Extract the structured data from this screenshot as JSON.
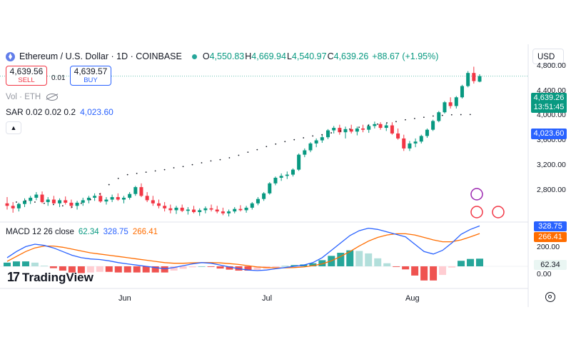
{
  "header": {
    "symbol": "Ethereum / U.S. Dollar · 1D · COINBASE",
    "ohlc": {
      "o_key": "O",
      "o": "4,550.83",
      "h_key": "H",
      "h": "4,669.94",
      "l_key": "L",
      "l": "4,540.97",
      "c_key": "C",
      "c": "4,639.26",
      "change": "+88.67 (+1.95%)"
    },
    "currency": "USD"
  },
  "trade": {
    "sell_price": "4,639.56",
    "sell_label": "SELL",
    "spread": "0.01",
    "buy_price": "4,639.57",
    "buy_label": "BUY"
  },
  "indicators": {
    "vol_label": "Vol · ETH",
    "sar_label": "SAR 0.02 0.02 0.2",
    "sar_value": "4,023.60",
    "macd_label": "MACD 12 26 close",
    "macd_hist": "62.34",
    "macd_line": "328.75",
    "macd_signal": "266.41"
  },
  "price_scale": {
    "ticks": [
      "4,800.00",
      "4,400.00",
      "4,000.00",
      "3,600.00",
      "3,200.00",
      "2,800.00"
    ],
    "last_price": "4,639.26",
    "countdown": "13:51:45",
    "sar_tag": "4,023.60"
  },
  "macd_scale": {
    "ticks": [
      "200.00",
      "0.00"
    ],
    "macd_tag": "328.75",
    "signal_tag": "266.41",
    "hist_tag": "62.34"
  },
  "time_axis": [
    "Jun",
    "Jul",
    "Aug"
  ],
  "logo": "TradingView",
  "colors": {
    "up": "#089981",
    "down": "#f23645",
    "sar": "#131722",
    "macd": "#2962ff",
    "signal": "#ff6d00",
    "hist_up": "#26a69a",
    "hist_down": "#ef5350"
  },
  "chart_data": {
    "type": "candlestick",
    "price_range": [
      2300,
      5150
    ],
    "candles": [
      [
        2600,
        2700,
        2500,
        2560
      ],
      [
        2560,
        2620,
        2450,
        2520
      ],
      [
        2520,
        2610,
        2470,
        2590
      ],
      [
        2590,
        2680,
        2540,
        2640
      ],
      [
        2640,
        2720,
        2590,
        2690
      ],
      [
        2690,
        2780,
        2650,
        2740
      ],
      [
        2740,
        2790,
        2600,
        2620
      ],
      [
        2620,
        2700,
        2560,
        2660
      ],
      [
        2660,
        2720,
        2590,
        2600
      ],
      [
        2600,
        2680,
        2540,
        2650
      ],
      [
        2650,
        2710,
        2580,
        2610
      ],
      [
        2610,
        2660,
        2520,
        2560
      ],
      [
        2560,
        2640,
        2500,
        2610
      ],
      [
        2610,
        2690,
        2560,
        2650
      ],
      [
        2650,
        2720,
        2600,
        2690
      ],
      [
        2690,
        2760,
        2640,
        2720
      ],
      [
        2720,
        2770,
        2610,
        2630
      ],
      [
        2630,
        2700,
        2580,
        2660
      ],
      [
        2660,
        2740,
        2620,
        2700
      ],
      [
        2700,
        2760,
        2640,
        2660
      ],
      [
        2660,
        2720,
        2600,
        2690
      ],
      [
        2690,
        2780,
        2660,
        2750
      ],
      [
        2750,
        2880,
        2720,
        2860
      ],
      [
        2860,
        2920,
        2700,
        2720
      ],
      [
        2720,
        2780,
        2620,
        2650
      ],
      [
        2650,
        2720,
        2560,
        2600
      ],
      [
        2600,
        2660,
        2520,
        2560
      ],
      [
        2560,
        2620,
        2470,
        2520
      ],
      [
        2520,
        2580,
        2440,
        2490
      ],
      [
        2490,
        2560,
        2430,
        2530
      ],
      [
        2530,
        2580,
        2460,
        2480
      ],
      [
        2480,
        2540,
        2420,
        2500
      ],
      [
        2500,
        2560,
        2440,
        2460
      ],
      [
        2460,
        2520,
        2400,
        2490
      ],
      [
        2490,
        2550,
        2440,
        2520
      ],
      [
        2520,
        2580,
        2470,
        2500
      ],
      [
        2500,
        2560,
        2440,
        2470
      ],
      [
        2470,
        2530,
        2410,
        2440
      ],
      [
        2440,
        2500,
        2390,
        2470
      ],
      [
        2470,
        2540,
        2440,
        2510
      ],
      [
        2510,
        2570,
        2470,
        2490
      ],
      [
        2490,
        2560,
        2450,
        2530
      ],
      [
        2530,
        2620,
        2500,
        2600
      ],
      [
        2600,
        2700,
        2570,
        2670
      ],
      [
        2670,
        2780,
        2640,
        2760
      ],
      [
        2760,
        2940,
        2740,
        2920
      ],
      [
        2920,
        3030,
        2890,
        3010
      ],
      [
        3010,
        3080,
        2960,
        3040
      ],
      [
        3040,
        3110,
        2990,
        3060
      ],
      [
        3060,
        3160,
        3030,
        3140
      ],
      [
        3140,
        3400,
        3120,
        3380
      ],
      [
        3380,
        3480,
        3340,
        3450
      ],
      [
        3450,
        3580,
        3420,
        3560
      ],
      [
        3560,
        3640,
        3500,
        3610
      ],
      [
        3610,
        3700,
        3570,
        3660
      ],
      [
        3660,
        3790,
        3630,
        3770
      ],
      [
        3770,
        3840,
        3720,
        3810
      ],
      [
        3810,
        3860,
        3700,
        3740
      ],
      [
        3740,
        3830,
        3640,
        3790
      ],
      [
        3790,
        3860,
        3720,
        3750
      ],
      [
        3750,
        3830,
        3690,
        3800
      ],
      [
        3800,
        3860,
        3740,
        3780
      ],
      [
        3780,
        3870,
        3730,
        3840
      ],
      [
        3840,
        3910,
        3800,
        3870
      ],
      [
        3870,
        3900,
        3780,
        3810
      ],
      [
        3810,
        3880,
        3760,
        3850
      ],
      [
        3850,
        3900,
        3700,
        3720
      ],
      [
        3720,
        3800,
        3620,
        3640
      ],
      [
        3640,
        3700,
        3440,
        3480
      ],
      [
        3480,
        3600,
        3440,
        3560
      ],
      [
        3560,
        3640,
        3500,
        3590
      ],
      [
        3590,
        3700,
        3560,
        3680
      ],
      [
        3680,
        3800,
        3650,
        3780
      ],
      [
        3780,
        3940,
        3760,
        3920
      ],
      [
        3920,
        4080,
        3900,
        4060
      ],
      [
        4060,
        4240,
        4040,
        4220
      ],
      [
        4220,
        4300,
        4120,
        4160
      ],
      [
        4160,
        4320,
        4120,
        4300
      ],
      [
        4300,
        4500,
        4280,
        4480
      ],
      [
        4480,
        4720,
        4460,
        4690
      ],
      [
        4690,
        4790,
        4520,
        4560
      ],
      [
        4550.83,
        4669.94,
        4540.97,
        4639.26
      ]
    ],
    "sar": [
      [
        4,
        2620
      ],
      [
        8,
        2640
      ],
      [
        12,
        2620
      ],
      [
        16,
        2600
      ],
      [
        20,
        2580
      ],
      [
        24,
        2560
      ],
      [
        28,
        2540
      ],
      [
        32,
        2600
      ],
      [
        36,
        2660
      ],
      [
        40,
        2750
      ],
      [
        44,
        2900
      ],
      [
        48,
        3000
      ],
      [
        52,
        3060
      ],
      [
        56,
        3080
      ],
      [
        60,
        3100
      ],
      [
        64,
        3120
      ],
      [
        68,
        3140
      ],
      [
        72,
        3170
      ],
      [
        76,
        3190
      ],
      [
        80,
        3220
      ],
      [
        84,
        3250
      ],
      [
        88,
        3280
      ],
      [
        92,
        3300
      ],
      [
        96,
        3330
      ],
      [
        100,
        3370
      ],
      [
        104,
        3420
      ],
      [
        108,
        3460
      ],
      [
        112,
        3510
      ],
      [
        116,
        3550
      ],
      [
        120,
        3590
      ],
      [
        124,
        3620
      ],
      [
        128,
        3650
      ],
      [
        132,
        3680
      ],
      [
        136,
        3700
      ],
      [
        140,
        3730
      ],
      [
        144,
        3760
      ],
      [
        148,
        3790
      ],
      [
        152,
        3820
      ],
      [
        156,
        3850
      ],
      [
        160,
        3870
      ],
      [
        164,
        3890
      ],
      [
        168,
        3910
      ],
      [
        172,
        3940
      ],
      [
        176,
        3960
      ],
      [
        180,
        3980
      ],
      [
        184,
        4000
      ],
      [
        188,
        4010
      ],
      [
        192,
        4020
      ],
      [
        196,
        4022
      ],
      [
        200,
        4023.6
      ]
    ],
    "macd_range": [
      -180,
      360
    ],
    "macd_line": [
      70,
      120,
      160,
      180,
      170,
      150,
      120,
      90,
      70,
      60,
      55,
      45,
      30,
      20,
      10,
      0,
      -10,
      -20,
      -10,
      5,
      20,
      30,
      25,
      10,
      -5,
      -20,
      -30,
      -35,
      -30,
      -20,
      -10,
      0,
      10,
      30,
      70,
      130,
      190,
      250,
      290,
      310,
      300,
      280,
      260,
      240,
      180,
      120,
      100,
      130,
      190,
      260,
      300,
      328.75
    ],
    "signal_line": [
      40,
      80,
      120,
      150,
      165,
      165,
      155,
      140,
      125,
      110,
      100,
      90,
      80,
      70,
      60,
      50,
      40,
      30,
      25,
      25,
      28,
      30,
      30,
      28,
      22,
      15,
      5,
      -5,
      -10,
      -12,
      -12,
      -10,
      -5,
      5,
      20,
      45,
      80,
      120,
      165,
      205,
      235,
      255,
      265,
      265,
      255,
      235,
      215,
      200,
      200,
      215,
      240,
      266.41
    ],
    "histogram": [
      30,
      40,
      40,
      30,
      5,
      -15,
      -35,
      -50,
      -55,
      -50,
      -45,
      -45,
      -50,
      -50,
      -50,
      -50,
      -50,
      -50,
      -35,
      -20,
      -8,
      0,
      -5,
      -18,
      -27,
      -35,
      -35,
      -30,
      -20,
      -8,
      2,
      10,
      15,
      25,
      50,
      85,
      110,
      130,
      125,
      105,
      65,
      25,
      -5,
      -25,
      -75,
      -115,
      -115,
      -70,
      -10,
      45,
      60,
      62.34
    ]
  }
}
